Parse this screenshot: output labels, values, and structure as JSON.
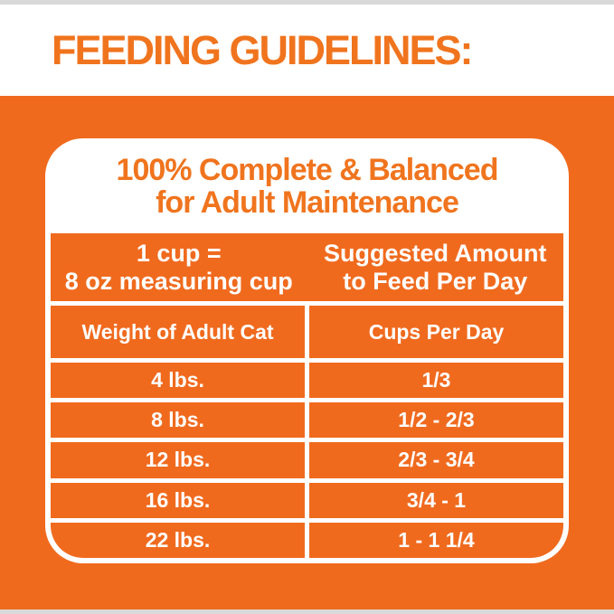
{
  "header": {
    "title": "FEEDING GUIDELINES:"
  },
  "card": {
    "heading_line1": "100% Complete & Balanced",
    "heading_line2": "for Adult Maintenance",
    "cup_info": {
      "line1": "1 cup =",
      "line2": "8 oz measuring cup"
    },
    "suggested": {
      "line1": "Suggested Amount",
      "line2": "to Feed Per Day"
    }
  },
  "table": {
    "columns": [
      "Weight of Adult Cat",
      "Cups Per Day"
    ],
    "rows": [
      {
        "weight": "4 lbs.",
        "cups": "1/3"
      },
      {
        "weight": "8 lbs.",
        "cups": "1/2 - 2/3"
      },
      {
        "weight": "12 lbs.",
        "cups": "2/3 - 3/4"
      },
      {
        "weight": "16 lbs.",
        "cups": "3/4 - 1"
      },
      {
        "weight": "22 lbs.",
        "cups": "1 - 1 1/4"
      }
    ]
  },
  "colors": {
    "orange_bg": "#F06A1E",
    "orange_text": "#F0741E",
    "edge_strip": "#D9D9D9",
    "white": "#FFFFFF"
  }
}
